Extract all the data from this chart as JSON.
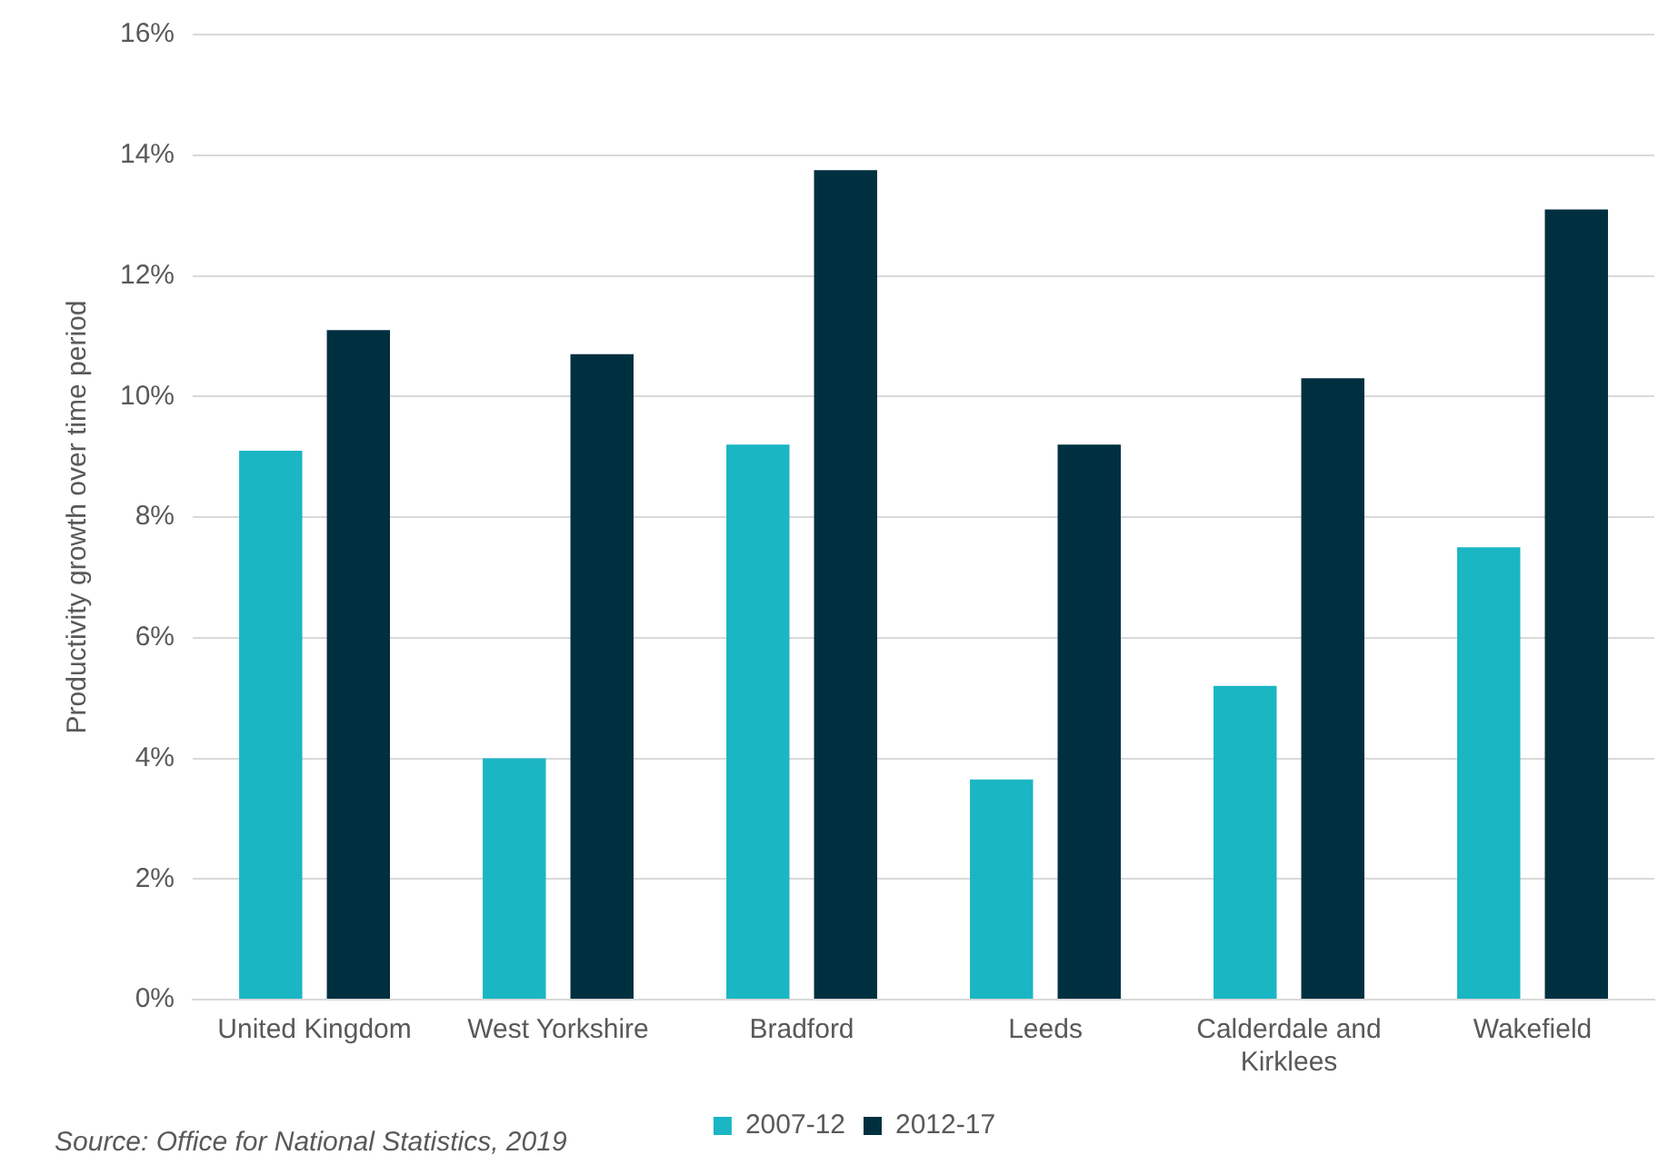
{
  "chart_data": {
    "type": "bar",
    "ylabel": "Productivity growth over time period",
    "categories": [
      "United Kingdom",
      "West Yorkshire",
      "Bradford",
      "Leeds",
      "Calderdale and Kirklees",
      "Wakefield"
    ],
    "series": [
      {
        "name": "2007-12",
        "color": "#1ab6c4",
        "values": [
          9.1,
          4.0,
          9.2,
          3.65,
          5.2,
          7.5
        ]
      },
      {
        "name": "2012-17",
        "color": "#003040",
        "values": [
          11.1,
          10.7,
          13.75,
          9.2,
          10.3,
          13.1
        ]
      }
    ],
    "ylim": [
      0,
      16
    ],
    "yticks": [
      {
        "value": 0,
        "label": "0%"
      },
      {
        "value": 2,
        "label": "2%"
      },
      {
        "value": 4,
        "label": "4%"
      },
      {
        "value": 6,
        "label": "6%"
      },
      {
        "value": 8,
        "label": "8%"
      },
      {
        "value": 10,
        "label": "10%"
      },
      {
        "value": 12,
        "label": "12%"
      },
      {
        "value": 14,
        "label": "14%"
      },
      {
        "value": 16,
        "label": "16%"
      }
    ],
    "grid": "y",
    "legend": "bottom",
    "annotations": [
      "Source: Office for National Statistics, 2019"
    ]
  }
}
